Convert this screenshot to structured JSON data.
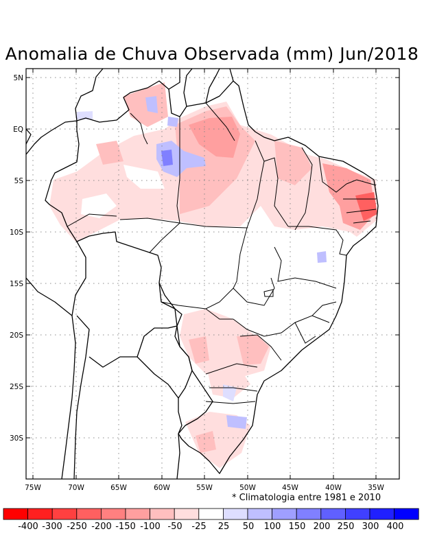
{
  "title": "Anomalia de Chuva Observada (mm) Jun/2018",
  "footnote": "* Climatologia entre 1981 e 2010",
  "map": {
    "lat_ticks": [
      "5N",
      "EQ",
      "5S",
      "10S",
      "15S",
      "20S",
      "25S",
      "30S"
    ],
    "lon_ticks": [
      "75W",
      "70W",
      "65W",
      "60W",
      "55W",
      "50W",
      "45W",
      "40W",
      "35W"
    ],
    "lon_range": [
      -76,
      -33
    ],
    "lat_range": [
      -34,
      6
    ],
    "grid": true
  },
  "legend": {
    "labels": [
      "-400",
      "-300",
      "-250",
      "-200",
      "-150",
      "-100",
      "-50",
      "-25",
      "25",
      "50",
      "100",
      "150",
      "200",
      "250",
      "300",
      "400"
    ],
    "colors": [
      "#ff0000",
      "#ff2020",
      "#ff4040",
      "#ff6060",
      "#ff8080",
      "#ff9f9f",
      "#ffbfbf",
      "#ffdede",
      "#ffffff",
      "#dedeff",
      "#bfbfff",
      "#9f9fff",
      "#8080ff",
      "#6060ff",
      "#4040ff",
      "#2020ff",
      "#0000ff"
    ]
  }
}
